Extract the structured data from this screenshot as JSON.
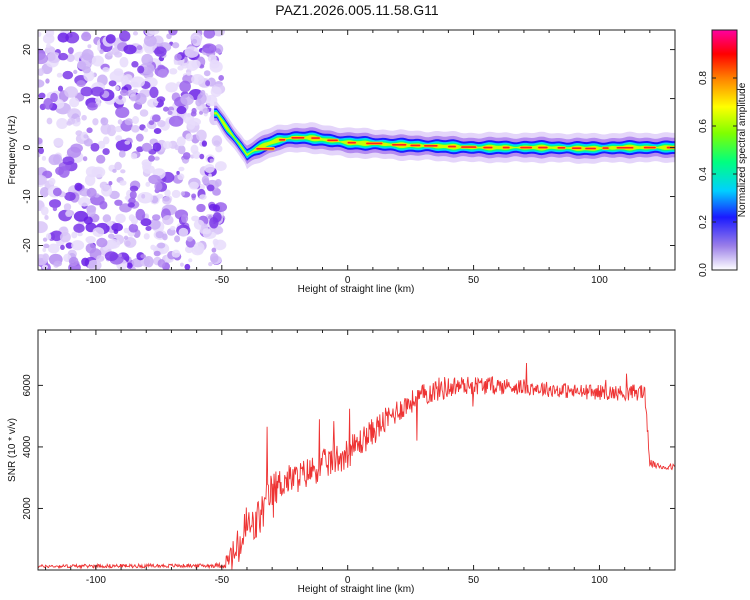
{
  "figure_title": "PAZ1.2026.005.11.58.G11",
  "chart_data": [
    {
      "type": "heatmap",
      "name": "spectrogram",
      "xlabel": "Height of straight line (km)",
      "ylabel": "Frequency (Hz)",
      "xlim": [
        -123,
        130
      ],
      "ylim": [
        -25,
        24
      ],
      "xticks": [
        -100,
        -50,
        0,
        50,
        100
      ],
      "xtick_labels": [
        "-100",
        "-50",
        "0",
        "50",
        "100"
      ],
      "yticks": [
        -20,
        -10,
        0,
        10,
        20
      ],
      "ytick_labels": [
        "-20",
        "-10",
        "0",
        "10",
        "20"
      ],
      "ridge": {
        "x_km": [
          -52,
          -48,
          -45,
          -42,
          -40,
          -37,
          -33,
          -28,
          -22,
          -15,
          -8,
          0,
          10,
          20,
          35,
          50,
          65,
          80,
          95,
          110,
          120,
          130
        ],
        "freq": [
          7,
          4,
          2,
          0,
          -1.5,
          -0.5,
          0.5,
          1.5,
          2.0,
          2.0,
          1.5,
          1.0,
          0.8,
          0.5,
          0.3,
          0.0,
          0.0,
          0.0,
          -0.2,
          0.0,
          0.0,
          0.0
        ],
        "peak_amplitude": 1.0
      },
      "noise_region": {
        "x_min_km": -123,
        "x_max_km": -50,
        "typical_amplitude": 0.12
      }
    },
    {
      "type": "colorbar",
      "name": "colorbar",
      "label": "Normalized spectral amplitude",
      "range": [
        0.0,
        1.0
      ],
      "ticks": [
        0.0,
        0.2,
        0.4,
        0.6,
        0.8
      ],
      "tick_labels": [
        "0.0",
        "0.2",
        "0.4",
        "0.6",
        "0.8"
      ],
      "colors": [
        "#ffffff",
        "#9b7fe8",
        "#1a1aff",
        "#00d0ff",
        "#00ff80",
        "#80ff00",
        "#ffff00",
        "#ff8000",
        "#ff0000",
        "#ff00a0"
      ]
    },
    {
      "type": "line",
      "name": "snr",
      "xlabel": "Height of straight line (km)",
      "ylabel": "SNR (10 * v/v)",
      "xlim": [
        -123,
        130
      ],
      "ylim": [
        0,
        7800
      ],
      "xticks": [
        -100,
        -50,
        0,
        50,
        100
      ],
      "xtick_labels": [
        "-100",
        "-50",
        "0",
        "50",
        "100"
      ],
      "yticks": [
        2000,
        4000,
        6000
      ],
      "ytick_labels": [
        "2000",
        "4000",
        "6000"
      ],
      "series": [
        {
          "name": "SNR",
          "color": "#ee3333",
          "x": [
            -123,
            -100,
            -60,
            -50,
            -45,
            -42,
            -40,
            -38,
            -35,
            -30,
            -25,
            -20,
            -10,
            0,
            10,
            20,
            30,
            37,
            45,
            55,
            70,
            90,
            110,
            118,
            120,
            122,
            125,
            130
          ],
          "y": [
            120,
            130,
            140,
            150,
            500,
            900,
            1500,
            1300,
            1700,
            2600,
            2900,
            3000,
            3400,
            3800,
            4500,
            5200,
            5700,
            5900,
            6000,
            6000,
            5950,
            5800,
            5750,
            5800,
            3500,
            3400,
            3350,
            3350
          ],
          "spread": [
            50,
            60,
            60,
            80,
            600,
            700,
            800,
            700,
            700,
            600,
            500,
            500,
            500,
            500,
            450,
            400,
            350,
            400,
            300,
            300,
            250,
            250,
            250,
            300,
            120,
            100,
            100,
            100
          ]
        }
      ]
    }
  ]
}
